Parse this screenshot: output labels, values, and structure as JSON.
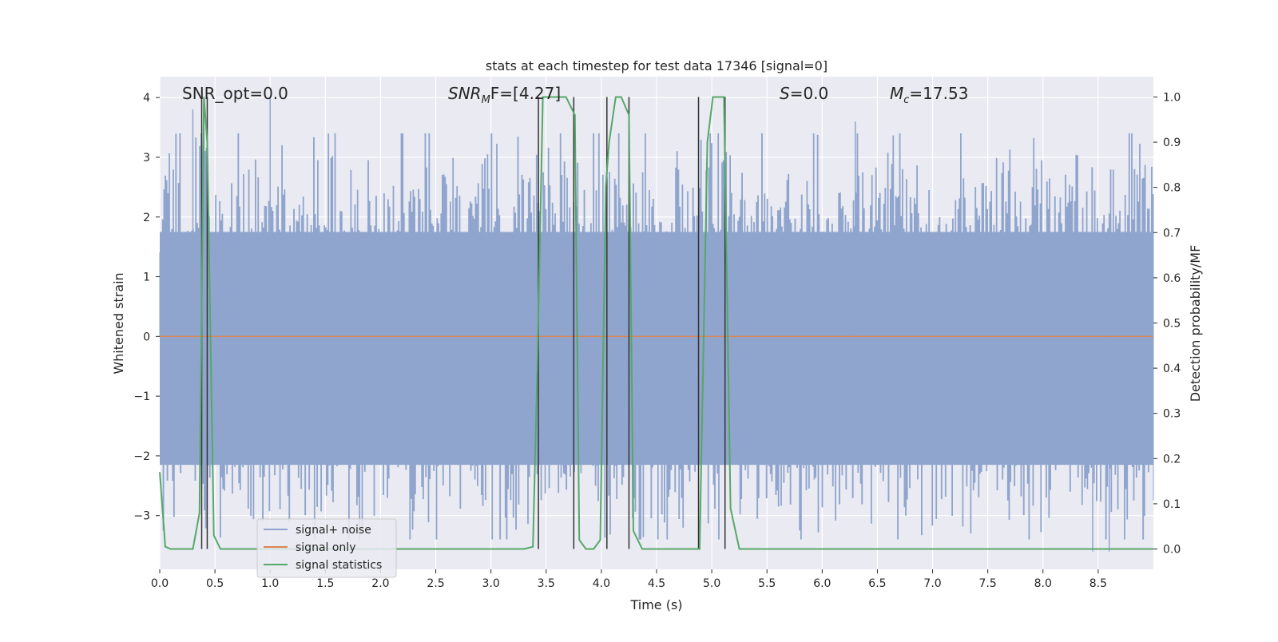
{
  "chart_data": {
    "type": "line",
    "title": "stats at each timestep for test data 17346 [signal=0]",
    "xlabel": "Time (s)",
    "ylabel_left": "Whitened strain",
    "ylabel_right": "Detection probability/MF",
    "xlim": [
      0,
      9.0
    ],
    "ylim_left": [
      -3.9,
      4.35
    ],
    "ylim_right": [
      -0.045,
      1.045
    ],
    "x_ticks": [
      0.0,
      0.5,
      1.0,
      1.5,
      2.0,
      2.5,
      3.0,
      3.5,
      4.0,
      4.5,
      5.0,
      5.5,
      6.0,
      6.5,
      7.0,
      7.5,
      8.0,
      8.5
    ],
    "x_tick_labels": [
      "0.0",
      "0.5",
      "1.0",
      "1.5",
      "2.0",
      "2.5",
      "3.0",
      "3.5",
      "4.0",
      "4.5",
      "5.0",
      "5.5",
      "6.0",
      "6.5",
      "7.0",
      "7.5",
      "8.0",
      "8.5"
    ],
    "y_left_ticks": [
      -3,
      -2,
      -1,
      0,
      1,
      2,
      3,
      4
    ],
    "y_left_tick_labels": [
      "−3",
      "−2",
      "−1",
      "0",
      "1",
      "2",
      "3",
      "4"
    ],
    "y_right_ticks": [
      0.0,
      0.1,
      0.2,
      0.3,
      0.4,
      0.5,
      0.6,
      0.7,
      0.8,
      0.9,
      1.0
    ],
    "y_right_tick_labels": [
      "0.0",
      "0.1",
      "0.2",
      "0.3",
      "0.4",
      "0.5",
      "0.6",
      "0.7",
      "0.8",
      "0.9",
      "1.0"
    ],
    "grid": true,
    "legend_position": "lower-left",
    "annotations": {
      "snr_opt": "SNR_opt=0.0",
      "snr_mf_base": "SNR",
      "snr_mf_sub": "M",
      "snr_mf_rest": "F=[4.27]",
      "s_italic": "S",
      "s_rest": "=0.0",
      "mc_base": "M",
      "mc_sub": "c",
      "mc_rest": "=17.53"
    },
    "series": [
      {
        "name": "signal+ noise",
        "color": "#8fa5cd",
        "kind": "noise_band",
        "seed": 17346,
        "sigma": 1.0,
        "envelope_peaks": [
          [
            0.3,
            3.8
          ],
          [
            0.4,
            3.9
          ],
          [
            1.0,
            4.0
          ],
          [
            6.3,
            3.6
          ],
          [
            8.45,
            -3.6
          ],
          [
            8.6,
            -3.6
          ]
        ]
      },
      {
        "name": "signal only",
        "color": "#dd8452",
        "x": [
          0.0,
          9.0
        ],
        "values": [
          0.0,
          0.0
        ]
      },
      {
        "name": "signal statistics",
        "color": "#55a868",
        "axis": "right",
        "x": [
          0.0,
          0.05,
          0.1,
          0.3,
          0.36,
          0.4,
          0.43,
          0.49,
          0.55,
          3.3,
          3.38,
          3.42,
          3.47,
          3.55,
          3.68,
          3.76,
          3.8,
          3.86,
          3.93,
          3.99,
          4.04,
          4.07,
          4.13,
          4.18,
          4.25,
          4.29,
          4.37,
          4.89,
          4.96,
          5.01,
          5.11,
          5.17,
          5.25,
          9.0
        ],
        "values": [
          0.17,
          0.005,
          0.0,
          0.0,
          0.08,
          1.0,
          0.9,
          0.03,
          0.0,
          0.0,
          0.005,
          0.4,
          1.0,
          1.0,
          1.0,
          0.96,
          0.02,
          0.0,
          0.0,
          0.02,
          0.8,
          0.9,
          1.0,
          1.0,
          0.96,
          0.04,
          0.0,
          0.0,
          0.9,
          1.0,
          1.0,
          0.09,
          0.0,
          0.0
        ]
      }
    ],
    "vertical_markers": {
      "color": "#333333",
      "x": [
        0.38,
        0.43,
        3.43,
        3.75,
        4.05,
        4.25,
        4.88,
        5.12
      ]
    }
  }
}
